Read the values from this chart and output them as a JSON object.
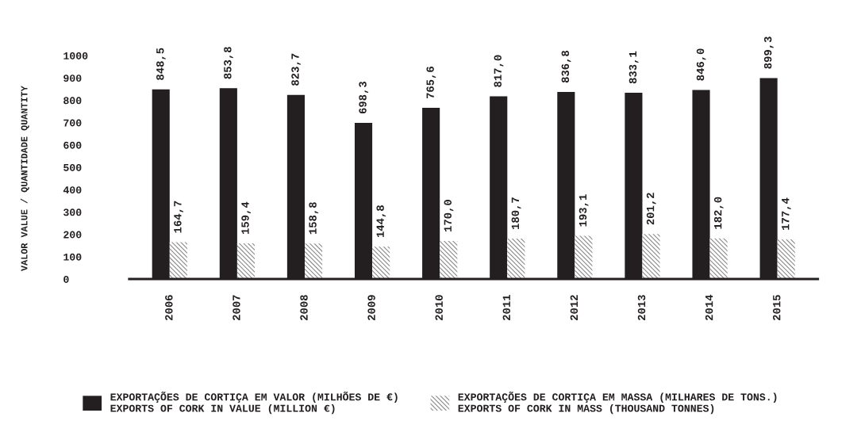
{
  "chart_data": {
    "type": "bar",
    "ylabel": "VALOR VALUE / QUANTIDADE QUANTITY",
    "categories": [
      "2006",
      "2007",
      "2008",
      "2009",
      "2010",
      "2011",
      "2012",
      "2013",
      "2014",
      "2015"
    ],
    "series": [
      {
        "name": "EXPORTAÇÕES DE CORTIÇA EM VALOR (MILHÕES DE €)\nEXPORTS OF CORK IN VALUE (MILLION €)",
        "color": "#231f20",
        "values": [
          848.5,
          853.8,
          823.7,
          698.3,
          765.6,
          817.0,
          836.8,
          833.1,
          846.0,
          899.3
        ],
        "value_labels": [
          "848,5",
          "853,8",
          "823,7",
          "698,3",
          "765,6",
          "817,0",
          "836,8",
          "833,1",
          "846,0",
          "899,3"
        ]
      },
      {
        "name": "EXPORTAÇÕES DE CORTIÇA EM MASSA (MILHARES DE TONS.)\nEXPORTS OF CORK IN MASS (THOUSAND TONNES)",
        "color": "#8a8a8a",
        "values": [
          164.7,
          159.4,
          158.8,
          144.8,
          170.0,
          180.7,
          193.1,
          201.2,
          182.0,
          177.4
        ],
        "value_labels": [
          "164,7",
          "159,4",
          "158,8",
          "144,8",
          "170,0",
          "180,7",
          "193,1",
          "201,2",
          "182,0",
          "177,4"
        ]
      }
    ],
    "ylim": [
      0,
      1000
    ],
    "yticks": [
      0,
      100,
      200,
      300,
      400,
      500,
      600,
      700,
      800,
      900,
      1000
    ],
    "grid": false,
    "legend": "bottom"
  }
}
